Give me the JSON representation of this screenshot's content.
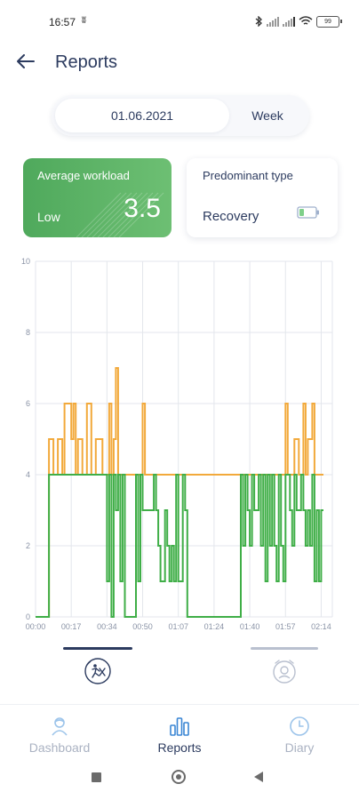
{
  "status_bar": {
    "time": "16:57",
    "time_icon": "ʬ",
    "battery": "99"
  },
  "header": {
    "title": "Reports"
  },
  "period": {
    "date": "01.06.2021",
    "week_label": "Week"
  },
  "workload_card": {
    "title": "Average workload",
    "level": "Low",
    "value": "3.5",
    "accent": "#5db466"
  },
  "type_card": {
    "title": "Predominant type",
    "value": "Recovery"
  },
  "chart_data": {
    "type": "line",
    "y_ticks": [
      "0",
      "2",
      "4",
      "6",
      "8",
      "10"
    ],
    "x_ticks": [
      "00:00",
      "00:17",
      "00:34",
      "00:50",
      "01:07",
      "01:24",
      "01:40",
      "01:57",
      "02:14"
    ],
    "ylim": [
      0,
      10
    ],
    "grid": true,
    "series": [
      {
        "color": "#f2a93b",
        "points": [
          [
            0,
            0
          ],
          [
            3,
            0
          ],
          [
            3,
            5
          ],
          [
            4,
            5
          ],
          [
            4,
            4
          ],
          [
            5,
            4
          ],
          [
            5,
            5
          ],
          [
            6,
            5
          ],
          [
            6,
            4
          ],
          [
            6.5,
            4
          ],
          [
            6.5,
            6
          ],
          [
            8,
            6
          ],
          [
            8,
            5
          ],
          [
            8.5,
            5
          ],
          [
            8.5,
            6
          ],
          [
            9,
            6
          ],
          [
            9,
            4
          ],
          [
            9.5,
            4
          ],
          [
            9.5,
            5
          ],
          [
            10.5,
            5
          ],
          [
            10.5,
            4
          ],
          [
            11.5,
            4
          ],
          [
            11.5,
            6
          ],
          [
            12.5,
            6
          ],
          [
            12.5,
            4
          ],
          [
            13.5,
            4
          ],
          [
            13.5,
            5
          ],
          [
            15,
            5
          ],
          [
            15,
            4
          ],
          [
            16.5,
            4
          ],
          [
            16.5,
            6
          ],
          [
            17,
            6
          ],
          [
            17,
            4
          ],
          [
            17.5,
            4
          ],
          [
            17.5,
            5
          ],
          [
            18,
            5
          ],
          [
            18,
            7
          ],
          [
            18.5,
            7
          ],
          [
            18.5,
            4
          ],
          [
            19,
            4
          ],
          [
            19,
            4
          ],
          [
            24,
            4
          ],
          [
            24,
            6
          ],
          [
            24.5,
            6
          ],
          [
            24.5,
            4
          ],
          [
            26,
            4
          ],
          [
            26,
            4
          ],
          [
            46,
            4
          ],
          [
            46,
            4
          ],
          [
            52.5,
            4
          ],
          [
            52.5,
            4
          ],
          [
            55,
            4
          ],
          [
            55,
            4
          ],
          [
            56,
            4
          ],
          [
            56,
            6
          ],
          [
            56.5,
            6
          ],
          [
            56.5,
            4
          ],
          [
            57,
            4
          ],
          [
            57,
            4
          ],
          [
            58,
            4
          ],
          [
            58,
            5
          ],
          [
            59,
            5
          ],
          [
            59,
            4
          ],
          [
            60,
            4
          ],
          [
            60,
            6
          ],
          [
            60.5,
            6
          ],
          [
            60.5,
            4
          ],
          [
            61,
            4
          ],
          [
            61,
            5
          ],
          [
            62,
            5
          ],
          [
            62,
            6
          ],
          [
            62.5,
            6
          ],
          [
            62.5,
            4
          ],
          [
            64.5,
            4
          ]
        ]
      },
      {
        "color": "#3fae47",
        "points": [
          [
            0,
            0
          ],
          [
            3,
            0
          ],
          [
            3,
            4
          ],
          [
            7,
            4
          ],
          [
            7,
            4
          ],
          [
            15,
            4
          ],
          [
            15,
            4
          ],
          [
            16,
            4
          ],
          [
            16,
            1
          ],
          [
            16.5,
            1
          ],
          [
            16.5,
            4
          ],
          [
            17,
            4
          ],
          [
            17,
            0
          ],
          [
            17.5,
            0
          ],
          [
            17.5,
            4
          ],
          [
            18,
            4
          ],
          [
            18,
            3
          ],
          [
            18.5,
            3
          ],
          [
            18.5,
            4
          ],
          [
            19,
            4
          ],
          [
            19,
            1
          ],
          [
            19.5,
            1
          ],
          [
            19.5,
            4
          ],
          [
            20,
            4
          ],
          [
            20,
            0
          ],
          [
            22.5,
            0
          ],
          [
            22.5,
            4
          ],
          [
            23,
            4
          ],
          [
            23,
            1
          ],
          [
            23.5,
            1
          ],
          [
            23.5,
            4
          ],
          [
            24,
            4
          ],
          [
            24,
            3
          ],
          [
            26.5,
            3
          ],
          [
            26.5,
            4
          ],
          [
            27,
            4
          ],
          [
            27,
            3
          ],
          [
            27.5,
            3
          ],
          [
            27.5,
            2
          ],
          [
            28,
            2
          ],
          [
            28,
            1
          ],
          [
            29,
            1
          ],
          [
            29,
            3
          ],
          [
            29.5,
            3
          ],
          [
            29.5,
            2
          ],
          [
            30,
            2
          ],
          [
            30,
            1
          ],
          [
            30.5,
            1
          ],
          [
            30.5,
            2
          ],
          [
            31,
            2
          ],
          [
            31,
            1
          ],
          [
            31.5,
            1
          ],
          [
            31.5,
            4
          ],
          [
            32,
            4
          ],
          [
            32,
            1
          ],
          [
            33,
            1
          ],
          [
            33,
            4
          ],
          [
            33.5,
            4
          ],
          [
            33.5,
            3
          ],
          [
            34,
            3
          ],
          [
            34,
            0
          ],
          [
            46,
            0
          ],
          [
            46,
            4
          ],
          [
            46.5,
            4
          ],
          [
            46.5,
            2
          ],
          [
            47,
            2
          ],
          [
            47,
            4
          ],
          [
            47.5,
            4
          ],
          [
            47.5,
            3
          ],
          [
            48,
            3
          ],
          [
            48,
            2
          ],
          [
            48.5,
            2
          ],
          [
            48.5,
            4
          ],
          [
            49,
            4
          ],
          [
            49,
            3
          ],
          [
            50,
            3
          ],
          [
            50,
            4
          ],
          [
            50.5,
            4
          ],
          [
            50.5,
            2
          ],
          [
            51,
            2
          ],
          [
            51,
            4
          ],
          [
            51.5,
            4
          ],
          [
            51.5,
            1
          ],
          [
            52,
            1
          ],
          [
            52,
            4
          ],
          [
            52.5,
            4
          ],
          [
            52.5,
            2
          ],
          [
            53,
            2
          ],
          [
            53,
            4
          ],
          [
            53.5,
            4
          ],
          [
            53.5,
            2
          ],
          [
            54,
            2
          ],
          [
            54,
            1
          ],
          [
            54.5,
            1
          ],
          [
            54.5,
            4
          ],
          [
            55,
            4
          ],
          [
            55,
            2
          ],
          [
            55.5,
            2
          ],
          [
            55.5,
            1
          ],
          [
            56,
            1
          ],
          [
            56,
            4
          ],
          [
            57,
            4
          ],
          [
            57,
            3
          ],
          [
            57.5,
            3
          ],
          [
            57.5,
            2
          ],
          [
            58,
            2
          ],
          [
            58,
            4
          ],
          [
            58.5,
            4
          ],
          [
            58.5,
            3
          ],
          [
            59.5,
            3
          ],
          [
            59.5,
            4
          ],
          [
            60,
            4
          ],
          [
            60,
            3
          ],
          [
            60.5,
            3
          ],
          [
            60.5,
            2
          ],
          [
            61,
            2
          ],
          [
            61,
            3
          ],
          [
            61.5,
            3
          ],
          [
            61.5,
            2
          ],
          [
            62,
            2
          ],
          [
            62,
            4
          ],
          [
            62.5,
            4
          ],
          [
            62.5,
            1
          ],
          [
            63,
            1
          ],
          [
            63,
            3
          ],
          [
            63.5,
            3
          ],
          [
            63.5,
            1
          ],
          [
            64,
            1
          ],
          [
            64,
            3
          ],
          [
            64.5,
            3
          ]
        ]
      }
    ]
  },
  "chart_tabs": [
    {
      "icon": "activity-vs-recovery-icon"
    },
    {
      "icon": "alarm-clock-icon"
    }
  ],
  "nav": {
    "dashboard": "Dashboard",
    "reports": "Reports",
    "diary": "Diary",
    "active_color": "#3a86d4",
    "inactive_color": "#aab2c2"
  }
}
